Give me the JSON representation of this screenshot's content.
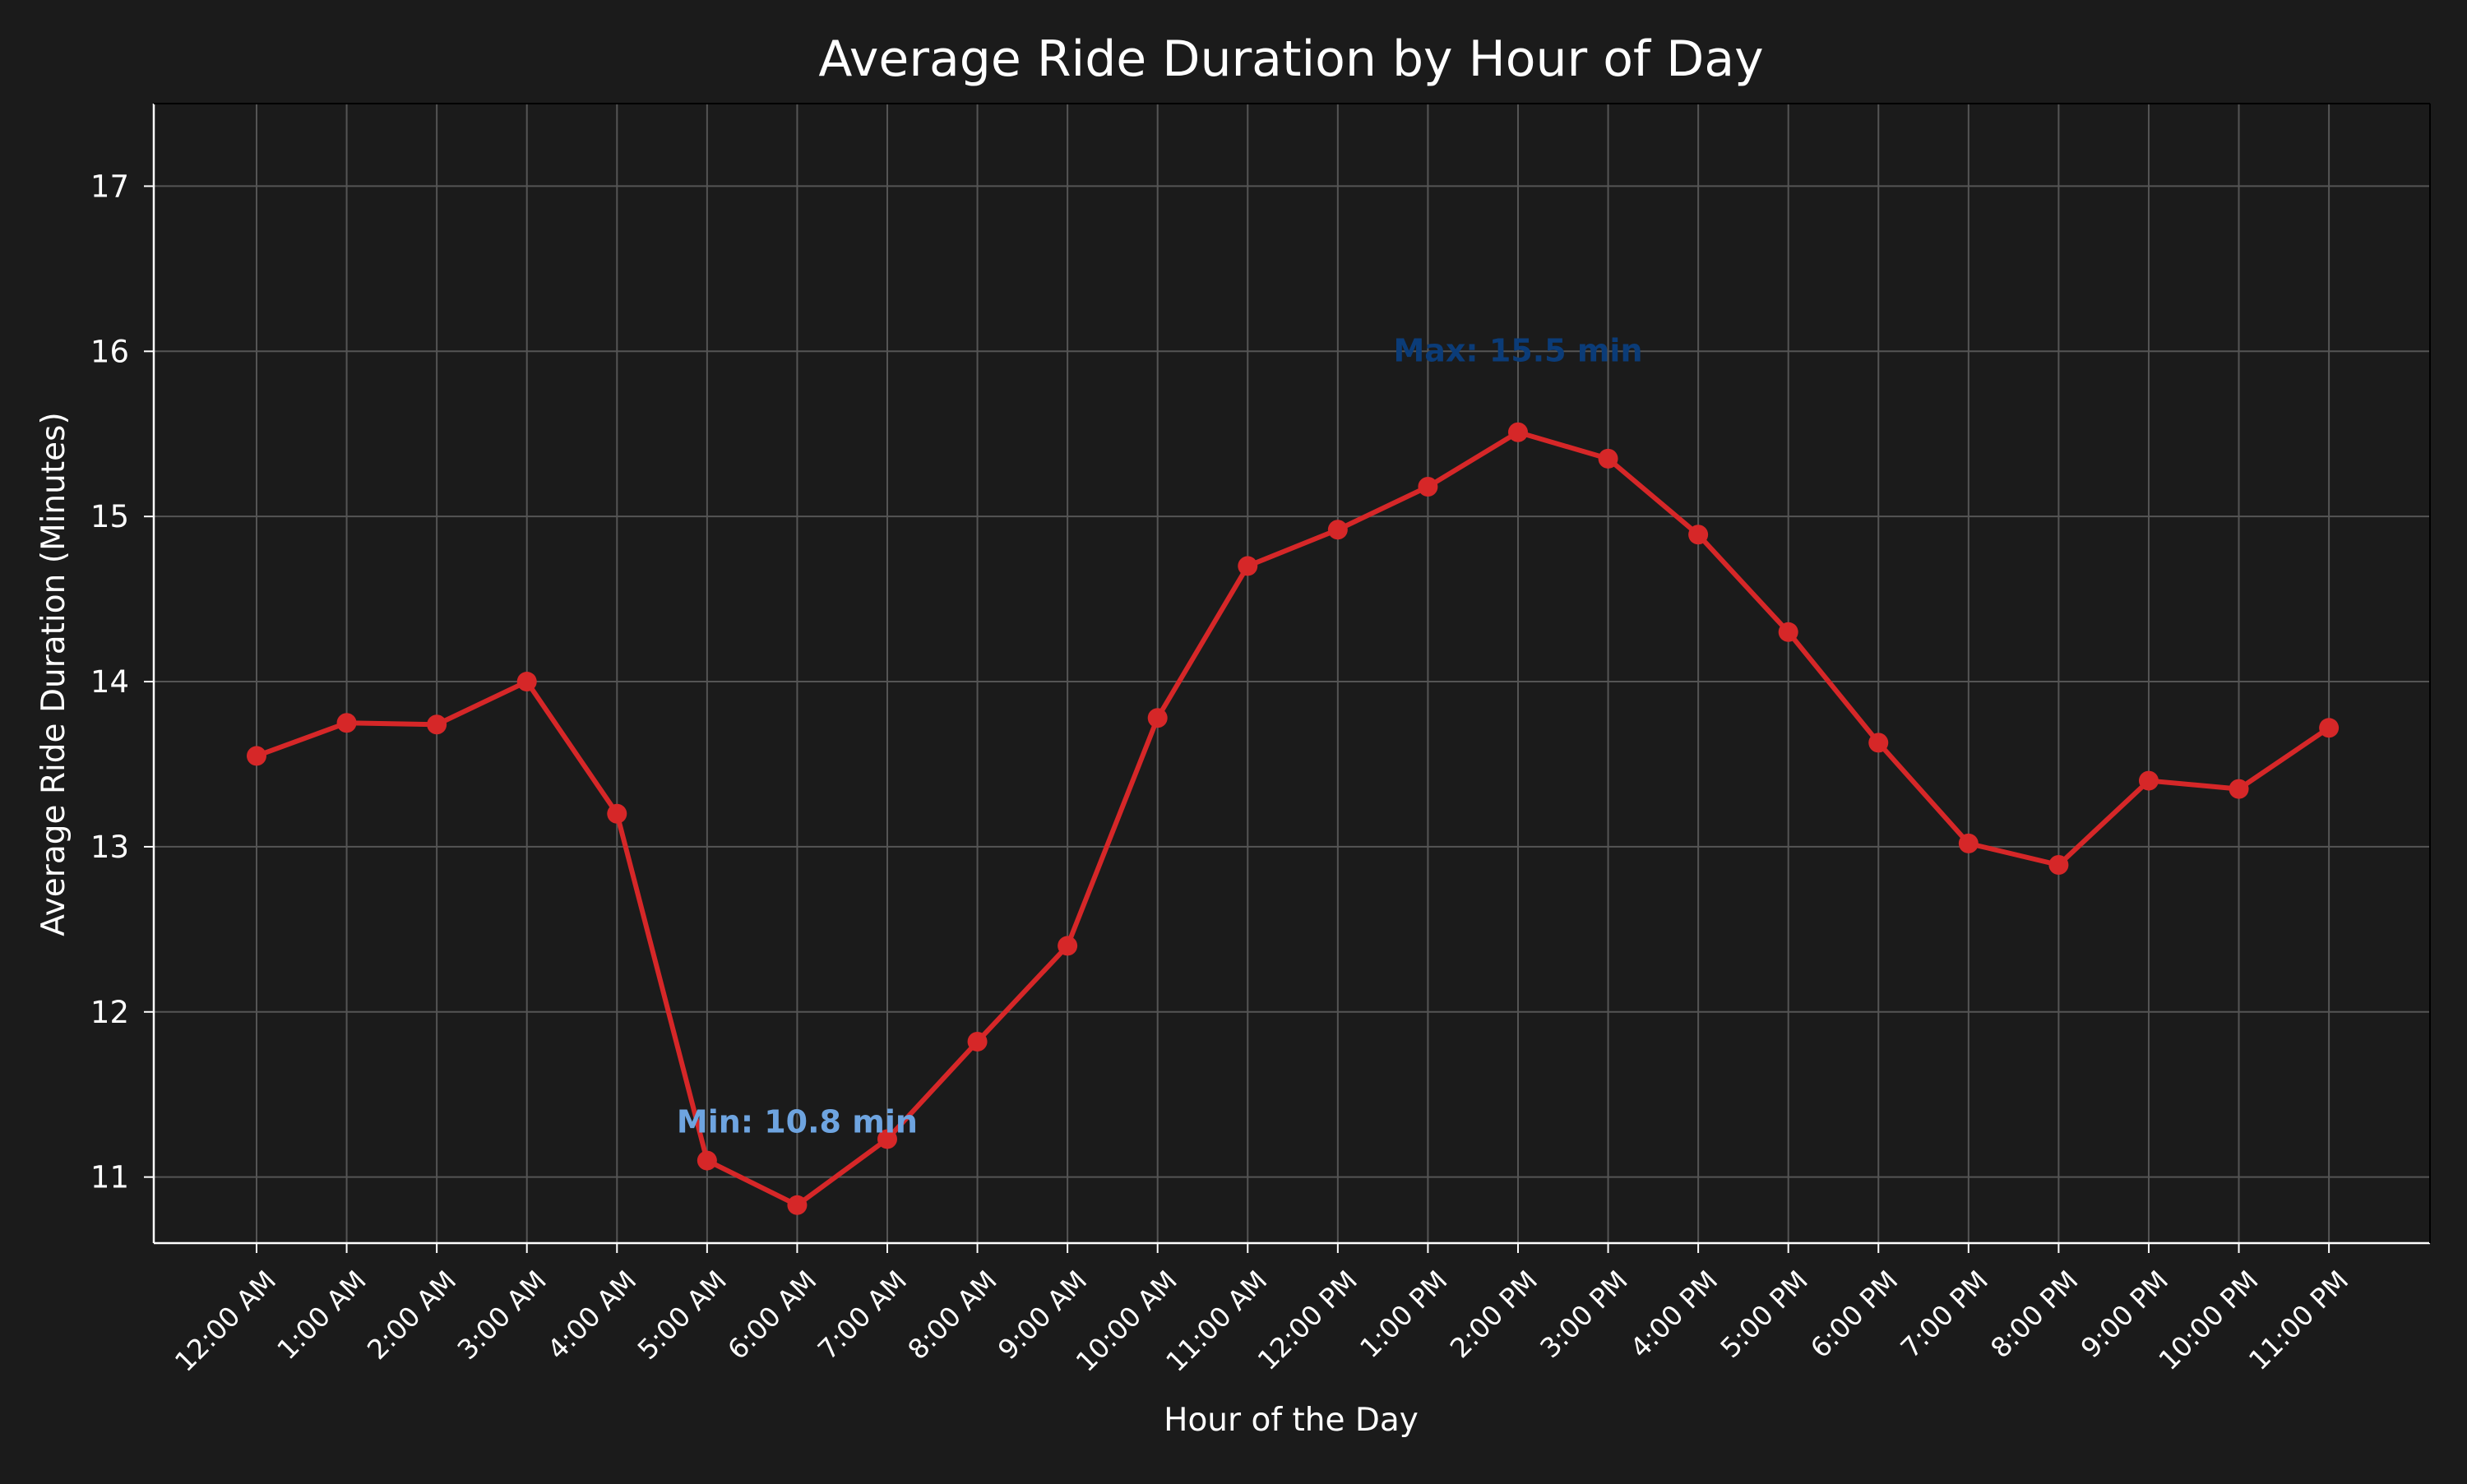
{
  "chart_data": {
    "type": "line",
    "title": "Average Ride Duration by Hour of Day",
    "xlabel": "Hour of the Day",
    "ylabel": "Average Ride Duration (Minutes)",
    "categories": [
      "12:00 AM",
      "1:00 AM",
      "2:00 AM",
      "3:00 AM",
      "4:00 AM",
      "5:00 AM",
      "6:00 AM",
      "7:00 AM",
      "8:00 AM",
      "9:00 AM",
      "10:00 AM",
      "11:00 AM",
      "12:00 PM",
      "1:00 PM",
      "2:00 PM",
      "3:00 PM",
      "4:00 PM",
      "5:00 PM",
      "6:00 PM",
      "7:00 PM",
      "8:00 PM",
      "9:00 PM",
      "10:00 PM",
      "11:00 PM"
    ],
    "series": [
      {
        "values": [
          13.55,
          13.75,
          13.74,
          14.0,
          13.2,
          11.1,
          10.83,
          11.23,
          11.82,
          12.4,
          13.78,
          14.7,
          14.92,
          15.18,
          15.51,
          15.35,
          14.89,
          14.3,
          13.63,
          13.02,
          12.89,
          13.4,
          13.35,
          13.72
        ],
        "color": "#d62728"
      }
    ],
    "ylim": [
      10.6,
      17.5
    ],
    "yticks": [
      11,
      12,
      13,
      14,
      15,
      16,
      17
    ],
    "grid": true,
    "annotations": [
      {
        "text": "Max: 15.5 min",
        "x_index": 14,
        "y": 16.0,
        "color": "#0b3c78"
      },
      {
        "text": "Min: 10.8 min",
        "x_index": 6,
        "y": 11.33,
        "color": "#6ea4e0"
      }
    ],
    "colors": {
      "background": "#1b1b1b",
      "text": "#ffffff",
      "grid": "#555555",
      "line": "#d62728"
    }
  }
}
